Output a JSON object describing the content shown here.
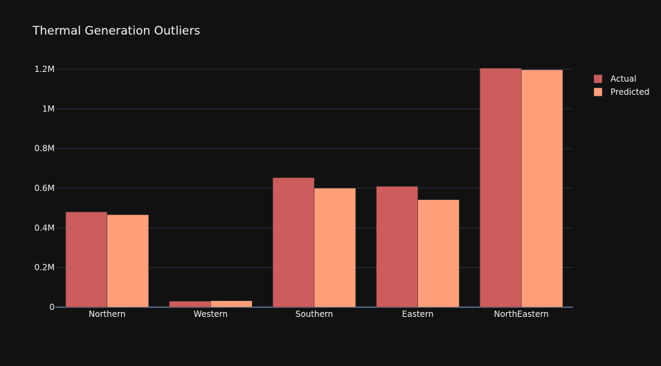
{
  "chart_data": {
    "type": "bar",
    "title": "Thermal Generation Outliers",
    "xlabel": "",
    "ylabel": "",
    "categories": [
      "Northern",
      "Western",
      "Southern",
      "Eastern",
      "NorthEastern"
    ],
    "series": [
      {
        "name": "Actual",
        "color": "#cd5c5c",
        "values": [
          480000,
          30000,
          653000,
          609000,
          1205000
        ]
      },
      {
        "name": "Predicted",
        "color": "#ffa07a",
        "values": [
          466000,
          32000,
          600000,
          542000,
          1197000
        ]
      }
    ],
    "ylim": [
      0,
      1270000
    ],
    "yticks": [
      {
        "value": 0,
        "label": "0"
      },
      {
        "value": 200000,
        "label": "0.2M"
      },
      {
        "value": 400000,
        "label": "0.4M"
      },
      {
        "value": 600000,
        "label": "0.6M"
      },
      {
        "value": 800000,
        "label": "0.8M"
      },
      {
        "value": 1000000,
        "label": "1M"
      },
      {
        "value": 1200000,
        "label": "1.2M"
      }
    ],
    "grid": true,
    "legend_position": "top-right",
    "colors": {
      "background": "#111111",
      "grid": "#283442",
      "text": "#f2f5fa",
      "bar_outline": "#343434"
    }
  }
}
